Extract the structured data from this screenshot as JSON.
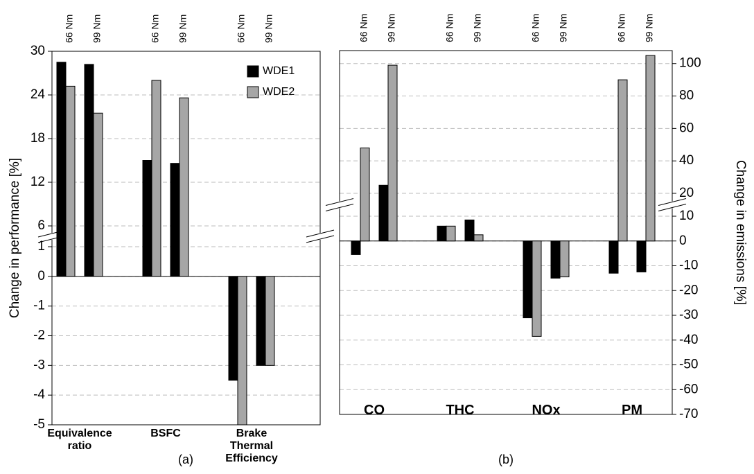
{
  "chart_data": [
    {
      "type": "bar",
      "caption": "(a)",
      "ylabel": "Change in performance [%]",
      "y_side": "left",
      "groups": [
        "Equivalence ratio",
        "BSFC",
        "Brake Thermal Efficiency"
      ],
      "categories": [
        "66 Nm",
        "99 Nm",
        "66 Nm",
        "99 Nm",
        "66 Nm",
        "99 Nm"
      ],
      "series": [
        {
          "name": "WDE1",
          "color": "#000000",
          "values": [
            28.5,
            28.2,
            15,
            14.6,
            -3.5,
            -3
          ]
        },
        {
          "name": "WDE2",
          "color": "#a6a6a6",
          "values": [
            25.2,
            21.5,
            26,
            23.6,
            -5,
            -3
          ]
        }
      ],
      "y_segments": [
        {
          "ylim": [
            -5,
            1
          ],
          "yticks": [
            -5,
            -4,
            -3,
            -2,
            -1,
            0,
            1
          ]
        },
        {
          "ylim": [
            6,
            30
          ],
          "yticks": [
            6,
            12,
            18,
            24,
            30
          ]
        }
      ],
      "grid": true,
      "legend": "upper right"
    },
    {
      "type": "bar",
      "caption": "(b)",
      "ylabel": "Change in emissions [%]",
      "y_side": "right",
      "groups": [
        "CO",
        "THC",
        "NOx",
        "PM"
      ],
      "categories": [
        "66 Nm",
        "99 Nm",
        "66 Nm",
        "99 Nm",
        "66 Nm",
        "99 Nm",
        "66 Nm",
        "99 Nm"
      ],
      "series": [
        {
          "color": "#000000",
          "values": [
            -5.5,
            25,
            6,
            8.5,
            -31,
            -15,
            -13,
            -12.5
          ]
        },
        {
          "color": "#a6a6a6",
          "values": [
            48,
            99,
            6,
            2.5,
            -38.5,
            -14.5,
            90,
            105
          ]
        }
      ],
      "y_segments": [
        {
          "ylim": [
            -70,
            10
          ],
          "yticks": [
            -70,
            -60,
            -50,
            -40,
            -30,
            -20,
            -10,
            0,
            10
          ]
        },
        {
          "ylim": [
            20,
            108
          ],
          "yticks": [
            20,
            40,
            60,
            80,
            100
          ]
        }
      ],
      "grid": true
    }
  ]
}
